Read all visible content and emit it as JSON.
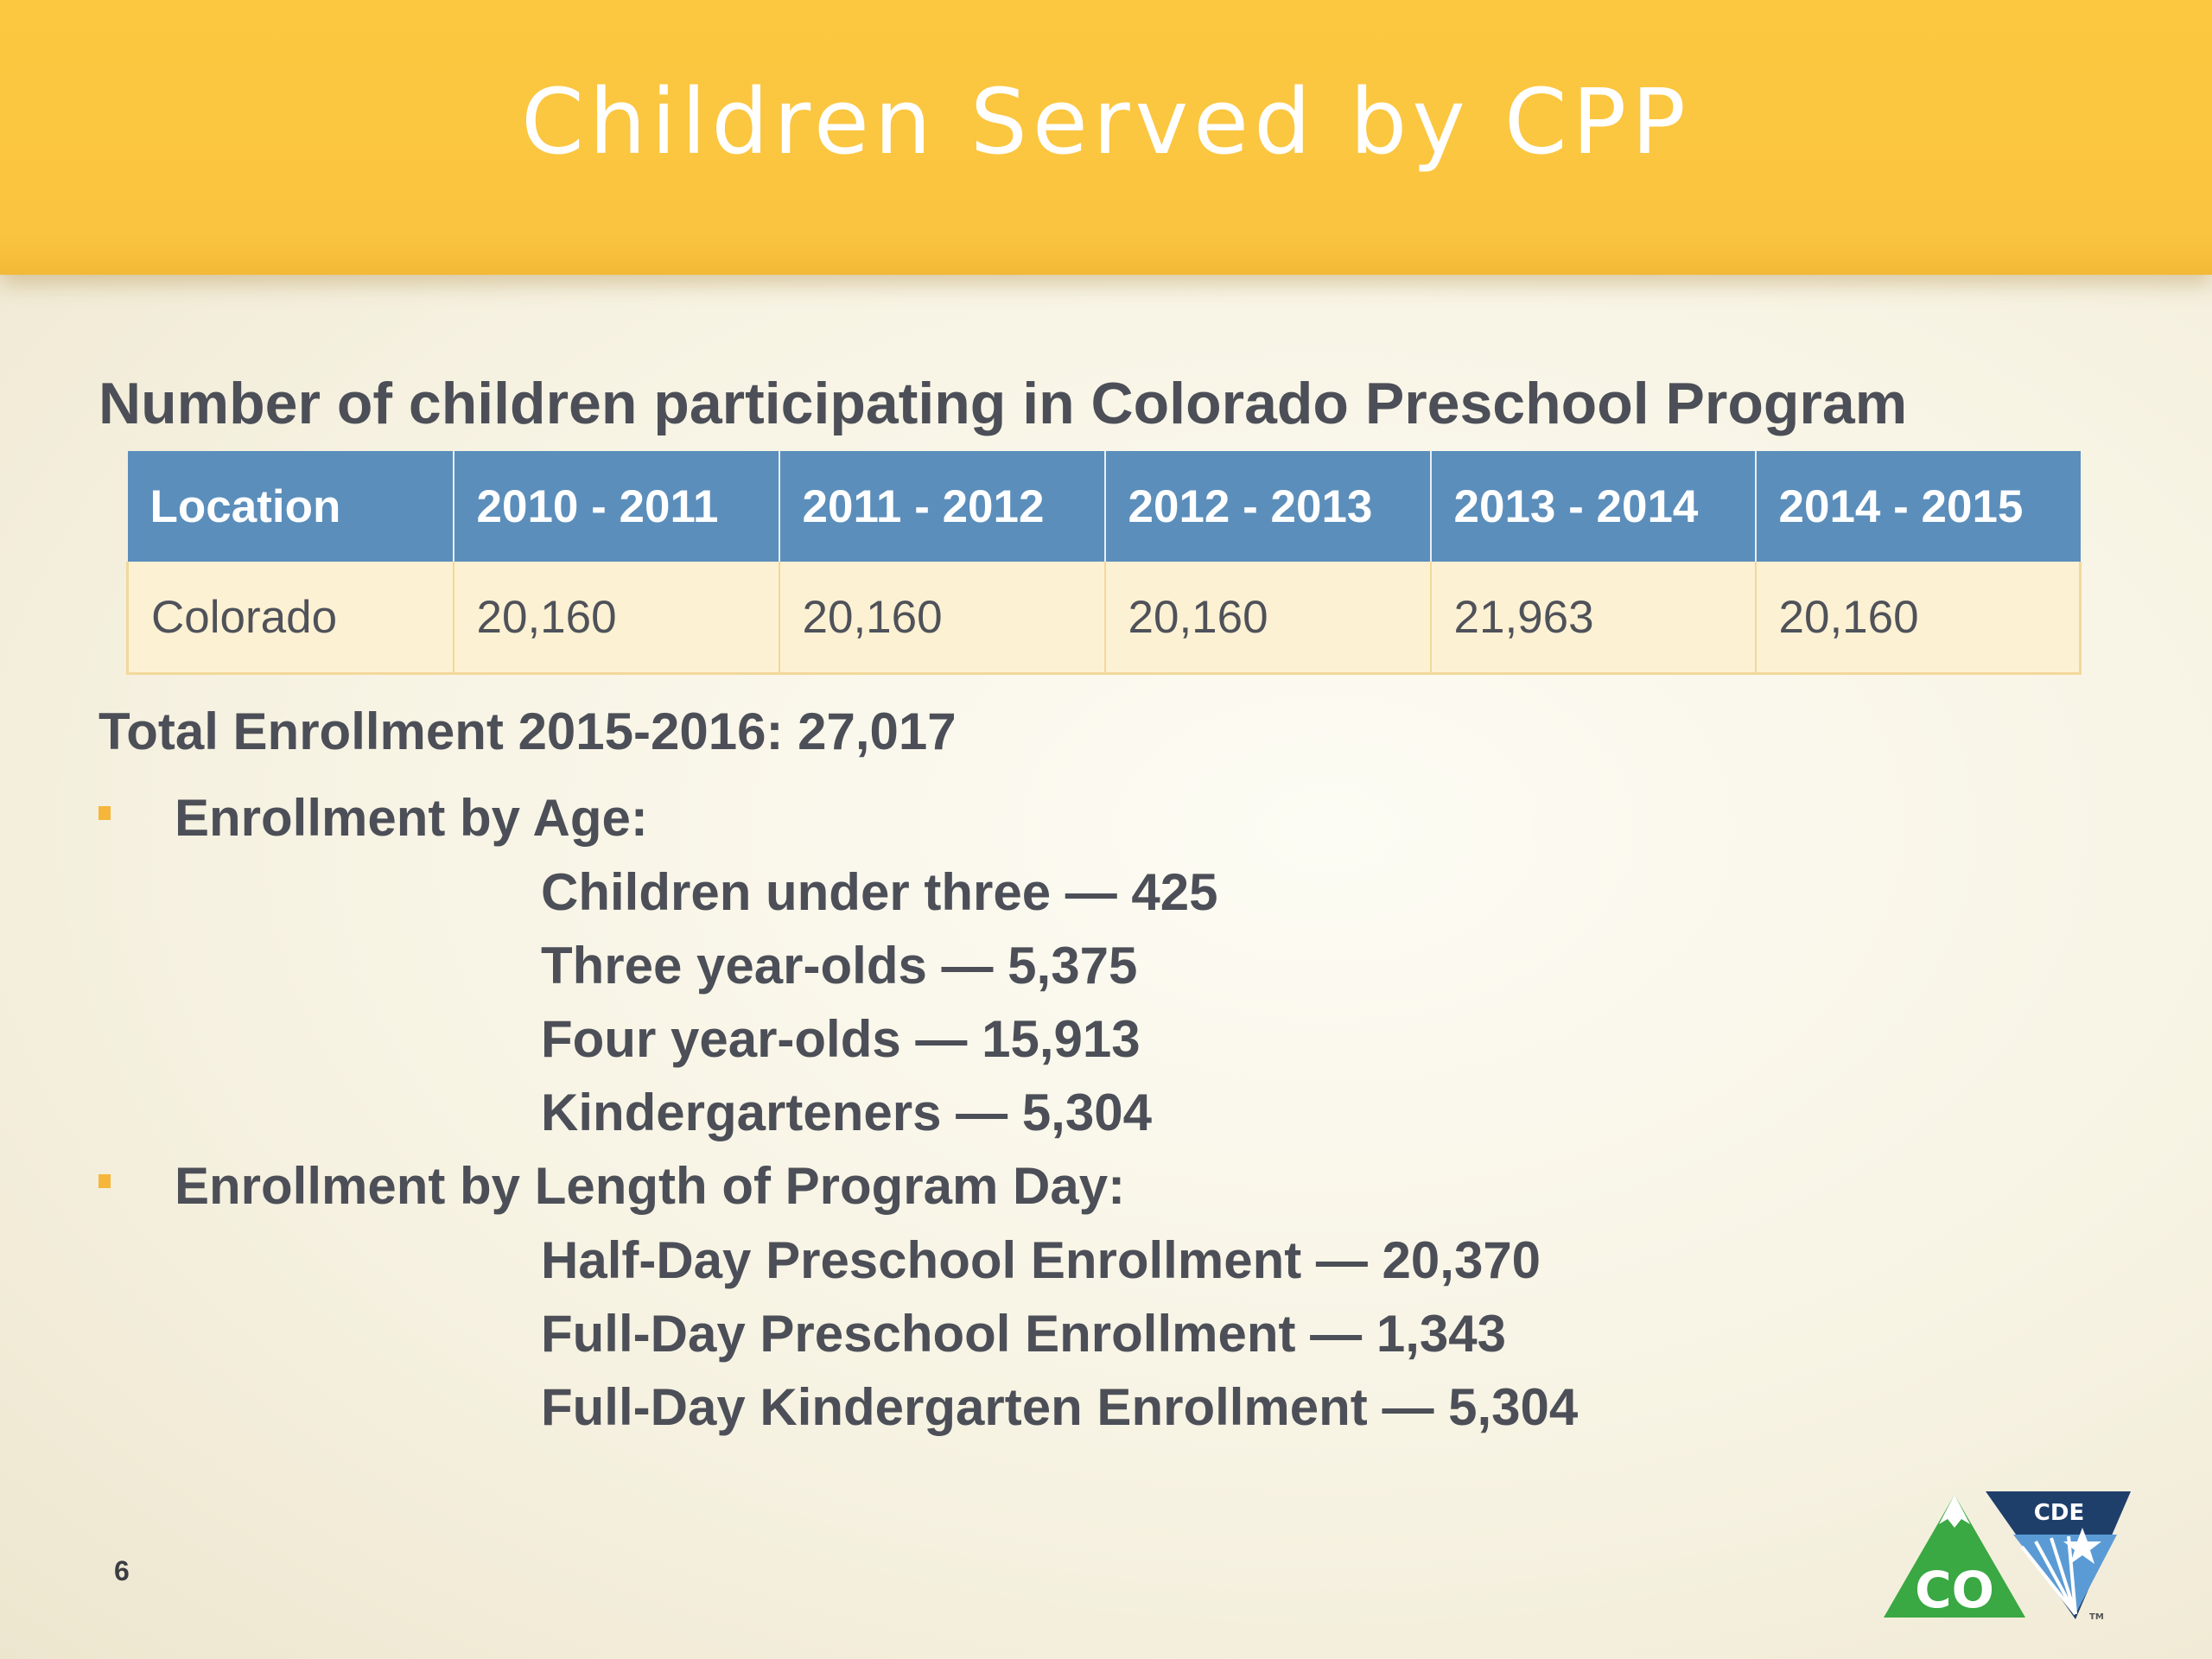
{
  "slide": {
    "title": "Children Served by CPP",
    "number": "6"
  },
  "section": {
    "heading": "Number of children participating in Colorado Preschool Program"
  },
  "table": {
    "headers": [
      "Location",
      "2010 - 2011",
      "2011 - 2012",
      "2012 - 2013",
      "2013 - 2014",
      "2014 - 2015"
    ],
    "rows": [
      [
        "Colorado",
        "20,160",
        "20,160",
        "20,160",
        "21,963",
        "20,160"
      ]
    ]
  },
  "total": "Total Enrollment 2015-2016: 27,017",
  "age": {
    "label": "Enrollment by Age:",
    "items": [
      "Children under three — 425",
      "Three year-olds — 5,375",
      "Four year-olds — 15,913",
      "Kindergarteners — 5,304"
    ]
  },
  "length": {
    "label": "Enrollment by Length of Program Day:",
    "items": [
      "Half-Day Preschool Enrollment — 20,370",
      "Full-Day Preschool Enrollment — 1,343",
      "Full-Day Kindergarten Enrollment — 5,304"
    ]
  },
  "logo": {
    "co_text": "CO",
    "cde_text": "CDE",
    "tm": "TM"
  },
  "colors": {
    "title_bar": "#fbc440",
    "table_header": "#5b8ebb",
    "table_cell": "#fdf1d4",
    "body_text": "#4c4f57",
    "bullet": "#f5b63a",
    "logo_green": "#3aa843",
    "logo_navy": "#1f3f6b"
  }
}
